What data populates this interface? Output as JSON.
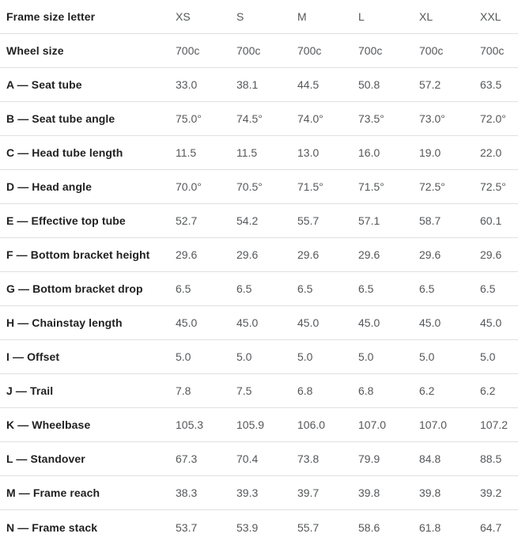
{
  "table": {
    "header_label": "Frame size letter",
    "columns": [
      "XS",
      "S",
      "M",
      "L",
      "XL",
      "XXL"
    ],
    "rows": [
      {
        "label": "Wheel size",
        "values": [
          "700c",
          "700c",
          "700c",
          "700c",
          "700c",
          "700c"
        ]
      },
      {
        "label": "A — Seat tube",
        "values": [
          "33.0",
          "38.1",
          "44.5",
          "50.8",
          "57.2",
          "63.5"
        ]
      },
      {
        "label": "B — Seat tube angle",
        "values": [
          "75.0°",
          "74.5°",
          "74.0°",
          "73.5°",
          "73.0°",
          "72.0°"
        ]
      },
      {
        "label": "C — Head tube length",
        "values": [
          "11.5",
          "11.5",
          "13.0",
          "16.0",
          "19.0",
          "22.0"
        ]
      },
      {
        "label": "D — Head angle",
        "values": [
          "70.0°",
          "70.5°",
          "71.5°",
          "71.5°",
          "72.5°",
          "72.5°"
        ]
      },
      {
        "label": "E — Effective top tube",
        "values": [
          "52.7",
          "54.2",
          "55.7",
          "57.1",
          "58.7",
          "60.1"
        ]
      },
      {
        "label": "F — Bottom bracket height",
        "values": [
          "29.6",
          "29.6",
          "29.6",
          "29.6",
          "29.6",
          "29.6"
        ]
      },
      {
        "label": "G — Bottom bracket drop",
        "values": [
          "6.5",
          "6.5",
          "6.5",
          "6.5",
          "6.5",
          "6.5"
        ]
      },
      {
        "label": "H — Chainstay length",
        "values": [
          "45.0",
          "45.0",
          "45.0",
          "45.0",
          "45.0",
          "45.0"
        ]
      },
      {
        "label": "I — Offset",
        "values": [
          "5.0",
          "5.0",
          "5.0",
          "5.0",
          "5.0",
          "5.0"
        ]
      },
      {
        "label": "J — Trail",
        "values": [
          "7.8",
          "7.5",
          "6.8",
          "6.8",
          "6.2",
          "6.2"
        ]
      },
      {
        "label": "K — Wheelbase",
        "values": [
          "105.3",
          "105.9",
          "106.0",
          "107.0",
          "107.0",
          "107.2"
        ]
      },
      {
        "label": "L — Standover",
        "values": [
          "67.3",
          "70.4",
          "73.8",
          "79.9",
          "84.8",
          "88.5"
        ]
      },
      {
        "label": "M — Frame reach",
        "values": [
          "38.3",
          "39.3",
          "39.7",
          "39.8",
          "39.8",
          "39.2"
        ]
      },
      {
        "label": "N — Frame stack",
        "values": [
          "53.7",
          "53.9",
          "55.7",
          "58.6",
          "61.8",
          "64.7"
        ]
      }
    ]
  },
  "colors": {
    "label_text": "#212121",
    "value_text": "#55575a",
    "divider": "#e0e0e0",
    "background": "#ffffff"
  }
}
